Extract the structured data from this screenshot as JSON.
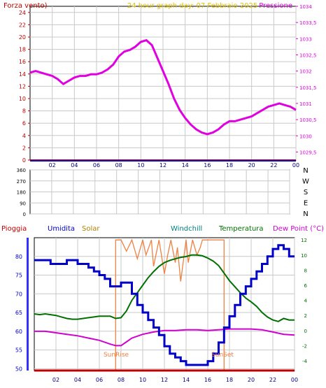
{
  "header": {
    "left": "Forza vento)",
    "center": "24 hour graph day:  07 Febbraio 2025",
    "right": "Pressione"
  },
  "wind_labels": [
    "N",
    "W",
    "S",
    "E",
    "N"
  ],
  "bottom_header": {
    "pioggia": "Pioggia",
    "umidita": "Umidita",
    "solar": "Solar",
    "windchill": "Windchill",
    "temperatura": "Temperatura",
    "dewpoint": "Dew Point (°C)"
  },
  "annotations": {
    "sunrise": "SunRise",
    "sunset": "SunSet"
  },
  "colors": {
    "background": "#ffffff",
    "grid": "#c8c8c8",
    "wind_axis": "#c00000",
    "pressure": "#e000e0",
    "title": "#e0c000",
    "humidity": "#0000c8",
    "solar": "#f08040",
    "temperature": "#007000",
    "windchill": "#008080",
    "dewpoint": "#d000d0"
  },
  "chart_data": [
    {
      "type": "line",
      "title": "24 hour graph day:  07 Febbraio 2025",
      "x_ticks": [
        "02",
        "04",
        "06",
        "08",
        "10",
        "12",
        "14",
        "16",
        "18",
        "20",
        "22",
        "00"
      ],
      "x_range_hours": [
        0,
        24
      ],
      "y_left_label": "Forza vento)",
      "y_left_ticks": [
        "0",
        "2",
        "4",
        "6",
        "8",
        "10",
        "12",
        "14",
        "16",
        "18",
        "20",
        "22",
        "24"
      ],
      "y_left_range": [
        0,
        25
      ],
      "y_right_label": "Pressione",
      "y_right_ticks": [
        "1029,5",
        "1030",
        "1030,5",
        "1031",
        "1031,5",
        "1032",
        "1032,5",
        "1033",
        "1033,5",
        "1034"
      ],
      "y_right_range": [
        1029.25,
        1034
      ],
      "grid": true,
      "series": [
        {
          "name": "Pressione",
          "axis": "right",
          "x": [
            0,
            0.5,
            1,
            1.5,
            2,
            2.5,
            3,
            3.5,
            4,
            4.5,
            5,
            5.5,
            6,
            6.5,
            7,
            7.5,
            8,
            8.5,
            9,
            9.5,
            10,
            10.5,
            11,
            11.5,
            12,
            12.5,
            13,
            13.5,
            14,
            14.5,
            15,
            15.5,
            16,
            16.5,
            17,
            17.5,
            18,
            18.5,
            19,
            19.5,
            20,
            20.5,
            21,
            21.5,
            22,
            22.5,
            23,
            23.5,
            24
          ],
          "values": [
            1031.95,
            1032.0,
            1031.95,
            1031.9,
            1031.85,
            1031.75,
            1031.6,
            1031.7,
            1031.8,
            1031.85,
            1031.85,
            1031.9,
            1031.9,
            1031.95,
            1032.05,
            1032.2,
            1032.45,
            1032.6,
            1032.65,
            1032.75,
            1032.9,
            1032.95,
            1032.8,
            1032.4,
            1032.0,
            1031.6,
            1031.15,
            1030.8,
            1030.55,
            1030.35,
            1030.2,
            1030.1,
            1030.05,
            1030.1,
            1030.2,
            1030.35,
            1030.45,
            1030.45,
            1030.5,
            1030.55,
            1030.6,
            1030.7,
            1030.8,
            1030.9,
            1030.95,
            1031.0,
            1030.95,
            1030.9,
            1030.8
          ]
        },
        {
          "name": "Forza vento",
          "axis": "left",
          "x": [
            0,
            24
          ],
          "values": [
            0,
            0
          ]
        }
      ]
    },
    {
      "type": "scatter",
      "y_ticks": [
        "0",
        "90",
        "180",
        "270",
        "360"
      ],
      "y_range": [
        0,
        360
      ],
      "y_right_ticks": [
        "N",
        "W",
        "S",
        "E",
        "N"
      ],
      "grid": true,
      "points": []
    },
    {
      "type": "line",
      "x_ticks": [
        "02",
        "04",
        "06",
        "08",
        "10",
        "12",
        "14",
        "16",
        "18",
        "20",
        "22",
        "00"
      ],
      "x_range_hours": [
        0,
        24
      ],
      "y_left_ticks": [
        "50",
        "55",
        "60",
        "65",
        "70",
        "75",
        "80"
      ],
      "y_left_range": [
        49.5,
        85
      ],
      "y_right_ticks": [
        "-4",
        "-2",
        "0",
        "2",
        "4",
        "6",
        "8",
        "10",
        "12"
      ],
      "y_right_range": [
        -5.3,
        12.3
      ],
      "grid": true,
      "series": [
        {
          "name": "Umidita",
          "axis": "left",
          "x": [
            0,
            0.5,
            1,
            1.5,
            2,
            2.5,
            3,
            3.5,
            4,
            4.5,
            5,
            5.5,
            6,
            6.5,
            7,
            7.5,
            8,
            8.5,
            9,
            9.5,
            10,
            10.5,
            11,
            11.5,
            12,
            12.5,
            13,
            13.5,
            14,
            14.5,
            15,
            15.5,
            16,
            16.5,
            17,
            17.5,
            18,
            18.5,
            19,
            19.5,
            20,
            20.5,
            21,
            21.5,
            22,
            22.5,
            23,
            23.5,
            24
          ],
          "values": [
            79,
            79,
            79,
            78,
            78,
            78,
            79,
            79,
            78,
            78,
            77,
            76,
            75,
            74,
            72,
            72,
            73,
            73,
            70,
            67,
            65,
            63,
            61,
            59,
            56,
            54,
            53,
            52,
            51,
            51,
            51,
            51,
            52,
            54,
            57,
            61,
            64,
            67,
            70,
            72,
            74,
            76,
            78,
            80,
            82,
            83,
            82,
            80,
            80
          ]
        },
        {
          "name": "Temperatura",
          "axis": "right",
          "x": [
            0,
            0.5,
            1,
            1.5,
            2,
            2.5,
            3,
            3.5,
            4,
            4.5,
            5,
            5.5,
            6,
            6.5,
            7,
            7.5,
            8,
            8.5,
            9,
            9.5,
            10,
            10.5,
            11,
            11.5,
            12,
            12.5,
            13,
            13.5,
            14,
            14.5,
            15,
            15.5,
            16,
            16.5,
            17,
            17.5,
            18,
            18.5,
            19,
            19.5,
            20,
            20.5,
            21,
            21.5,
            22,
            22.5,
            23,
            23.5,
            24
          ],
          "values": [
            2.2,
            2.1,
            2.2,
            2.1,
            2.0,
            1.8,
            1.6,
            1.5,
            1.5,
            1.6,
            1.7,
            1.8,
            1.9,
            1.9,
            1.9,
            1.6,
            1.7,
            2.6,
            4.0,
            5.0,
            6.0,
            7.0,
            7.8,
            8.5,
            9.0,
            9.3,
            9.5,
            9.7,
            9.8,
            10.0,
            10.0,
            9.9,
            9.6,
            9.2,
            8.6,
            7.6,
            6.6,
            5.8,
            5.0,
            4.3,
            3.8,
            3.2,
            2.4,
            1.8,
            1.4,
            1.2,
            1.6,
            1.4,
            1.4
          ]
        },
        {
          "name": "Dew Point (°C)",
          "axis": "right",
          "x": [
            0,
            1,
            2,
            3,
            4,
            5,
            6,
            7,
            7.5,
            8,
            8.5,
            9,
            10,
            11,
            12,
            13,
            14,
            15,
            16,
            17,
            18,
            19,
            20,
            21,
            22,
            23,
            24
          ],
          "values": [
            -0.1,
            -0.1,
            -0.3,
            -0.5,
            -0.7,
            -1.0,
            -1.3,
            -1.8,
            -2.0,
            -2.0,
            -1.5,
            -1.0,
            -0.5,
            -0.2,
            0.0,
            0.0,
            0.1,
            0.1,
            0.0,
            0.1,
            0.2,
            0.2,
            0.2,
            0.1,
            -0.2,
            -0.5,
            -0.6
          ]
        },
        {
          "name": "Solar",
          "axis": "right",
          "x": [
            0,
            7.5,
            7.5,
            8,
            8.5,
            9,
            9.5,
            10,
            10.3,
            10.8,
            11,
            11.5,
            12,
            12.3,
            12.6,
            13,
            13.2,
            13.5,
            14,
            14.2,
            14.6,
            15,
            15.3,
            15.5,
            16,
            16.5,
            17,
            17.5,
            17.5,
            24
          ],
          "values": [
            -5.3,
            -5.3,
            12,
            12,
            10.5,
            12,
            9.5,
            12,
            10,
            12,
            8.5,
            12,
            7.5,
            10,
            12,
            9,
            11,
            6.5,
            12,
            9,
            12,
            10,
            11,
            12,
            12,
            12,
            12,
            12,
            -5.3,
            -5.3
          ]
        },
        {
          "name": "Pioggia",
          "axis": "left",
          "x": [
            0,
            24
          ],
          "values": [
            49.5,
            49.5
          ]
        }
      ]
    }
  ]
}
